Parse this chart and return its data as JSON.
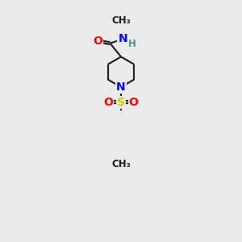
{
  "background_color": "#ebebeb",
  "line_color": "#1a1a1a",
  "bond_width": 1.5,
  "atom_colors": {
    "O": "#ff0000",
    "N": "#0000ff",
    "S": "#cccc00",
    "H": "#4a9090",
    "C": "#1a1a1a"
  },
  "font_size_atoms": 10,
  "font_size_small": 8.5
}
